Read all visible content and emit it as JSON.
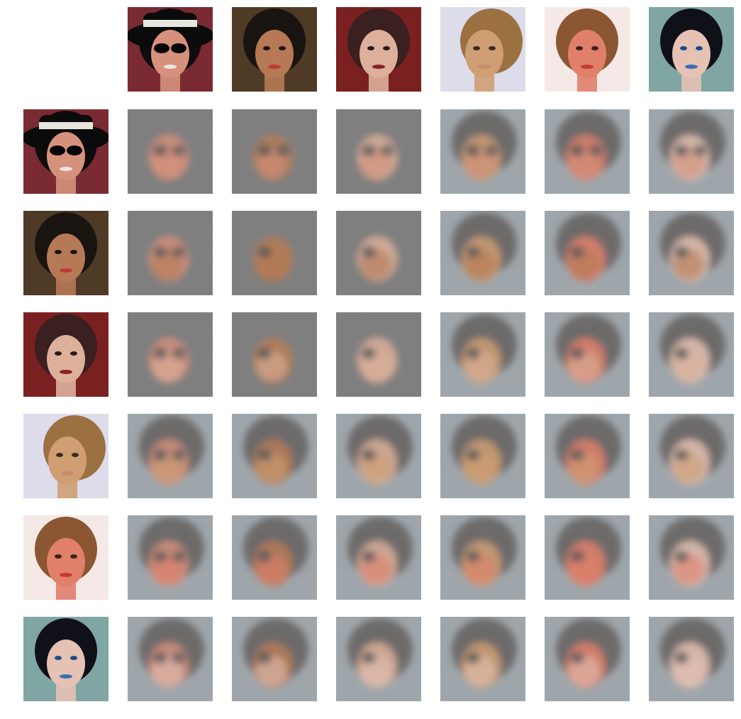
{
  "figure": {
    "description_free": true,
    "grid_rows": 7,
    "grid_cols": 7,
    "corner_cell_empty": true,
    "header_row_sources": [
      "source-1",
      "source-2",
      "source-3",
      "source-4",
      "source-5",
      "source-6"
    ],
    "header_col_sources": [
      "source-1",
      "source-2",
      "source-3",
      "source-4",
      "source-5",
      "source-6"
    ]
  },
  "palette": {
    "background": "#ffffff",
    "mask_gray": "#7f7f7f",
    "sources": [
      {
        "bg": "#7a2a33",
        "hair": "#0e0c0c",
        "skin": "#d6917c",
        "accent": "#e8e6df",
        "eyes": "#050505"
      },
      {
        "bg": "#4f3a26",
        "hair": "#1a1410",
        "skin": "#b57a55",
        "accent": "#c03838",
        "eyes": "#1d1512"
      },
      {
        "bg": "#7a2020",
        "hair": "#3a2020",
        "skin": "#dcb09a",
        "accent": "#8a1f25",
        "eyes": "#2a1616"
      },
      {
        "bg": "#dcdceb",
        "hair": "#9b7142",
        "skin": "#cf9e73",
        "accent": "#c88a70",
        "eyes": "#3a2a20"
      },
      {
        "bg": "#f4e9e6",
        "hair": "#8b5632",
        "skin": "#e0806a",
        "accent": "#c63a30",
        "eyes": "#3a2216"
      },
      {
        "bg": "#7fa6a2",
        "hair": "#101018",
        "skin": "#e5c2b4",
        "accent": "#3a6fb0",
        "eyes": "#1c4a88"
      }
    ]
  }
}
